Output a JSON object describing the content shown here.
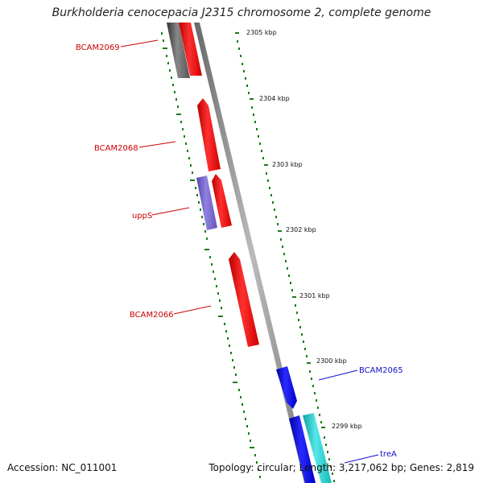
{
  "title": "Burkholderia cenocepacia J2315 chromosome 2, complete genome",
  "accession": "Accession: NC_011001",
  "info": "Topology: circular; Length: 3,217,062 bp; Genes: 2,819",
  "colors": {
    "backbone": "#888888",
    "tick": "#1a7a1a",
    "red_gene": "#ff1010",
    "red_label": "#cc0000",
    "blue_gene": "#1010ee",
    "blue_label": "#1010cc",
    "purple_gene": "#7766cc",
    "cyan_gene": "#22cccc",
    "gray_gene": "#666666"
  },
  "kbp_labels": [
    "2305 kbp",
    "2304 kbp",
    "2303 kbp",
    "2302 kbp",
    "2301 kbp",
    "2300 kbp",
    "2299 kbp"
  ],
  "genes": [
    {
      "label": "BCAM2069",
      "color": "red"
    },
    {
      "label": "BCAM2068",
      "color": "red"
    },
    {
      "label": "uppS",
      "color": "red"
    },
    {
      "label": "BCAM2066",
      "color": "red"
    },
    {
      "label": "BCAM2065",
      "color": "blue"
    },
    {
      "label": "treA",
      "color": "blue"
    }
  ]
}
